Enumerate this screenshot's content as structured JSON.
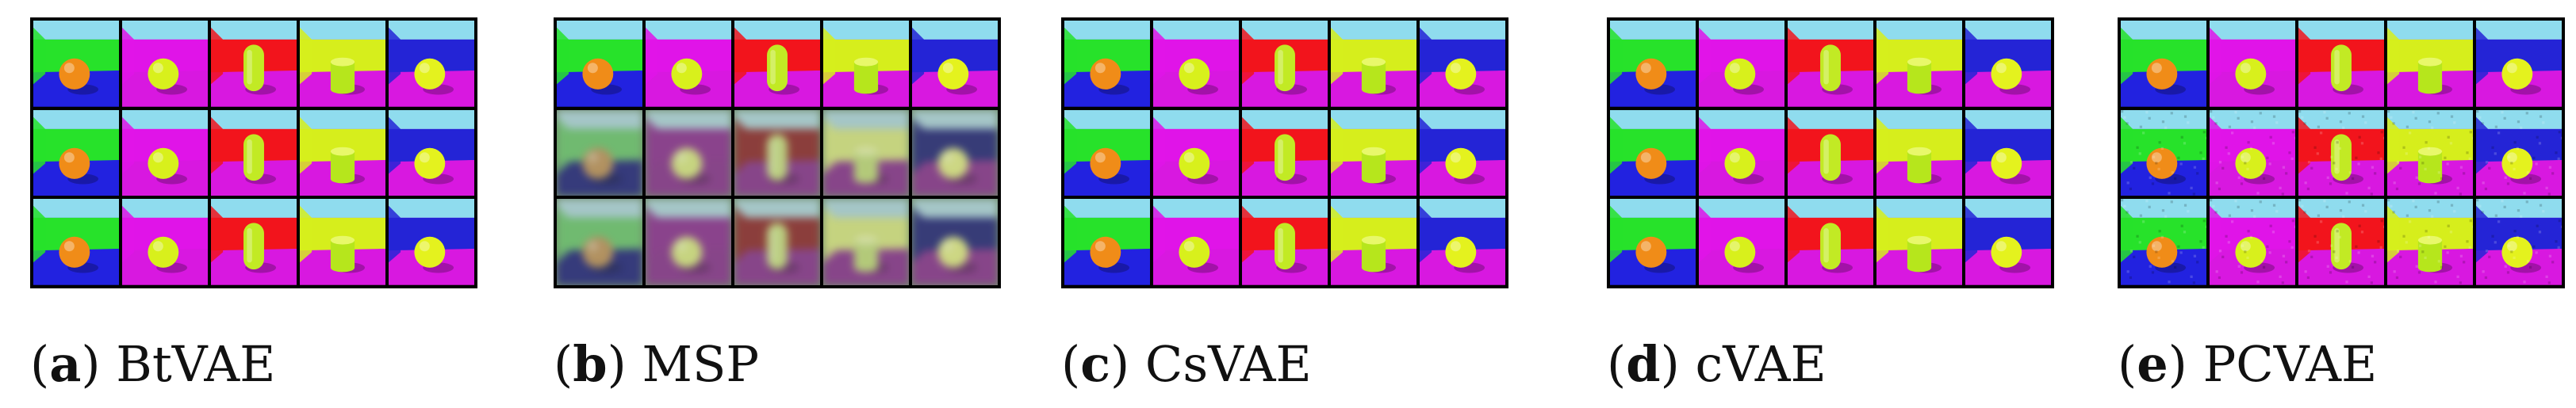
{
  "figure": {
    "panels": [
      {
        "letter": "a",
        "name": "BtVAE",
        "degraded_rows": [],
        "noisy_rows": []
      },
      {
        "letter": "b",
        "name": "MSP",
        "degraded_rows": [
          1,
          2
        ],
        "noisy_rows": []
      },
      {
        "letter": "c",
        "name": "CsVAE",
        "degraded_rows": [],
        "noisy_rows": []
      },
      {
        "letter": "d",
        "name": "cVAE",
        "degraded_rows": [],
        "noisy_rows": []
      },
      {
        "letter": "e",
        "name": "PCVAE",
        "degraded_rows": [],
        "noisy_rows": [
          1,
          2
        ]
      }
    ],
    "columns": [
      {
        "wall": "#27e22a",
        "floor": "#2222e0",
        "sky": "#8fdcee",
        "object": "sphere",
        "object_color": "#f08c18"
      },
      {
        "wall": "#e014e8",
        "floor": "#d818e0",
        "sky": "#8fdcee",
        "object": "sphere",
        "object_color": "#d8f01c"
      },
      {
        "wall": "#f2141c",
        "floor": "#d818e0",
        "sky": "#8fdcee",
        "object": "capsule",
        "object_color": "#c2ea24"
      },
      {
        "wall": "#d6ee1c",
        "floor": "#d818e0",
        "sky": "#8fdcee",
        "object": "cylinder",
        "object_color": "#b6e61c"
      },
      {
        "wall": "#2424d6",
        "floor": "#d818e0",
        "sky": "#8fdcee",
        "object": "sphere",
        "object_color": "#e4f21e"
      }
    ],
    "row_count": 3
  }
}
